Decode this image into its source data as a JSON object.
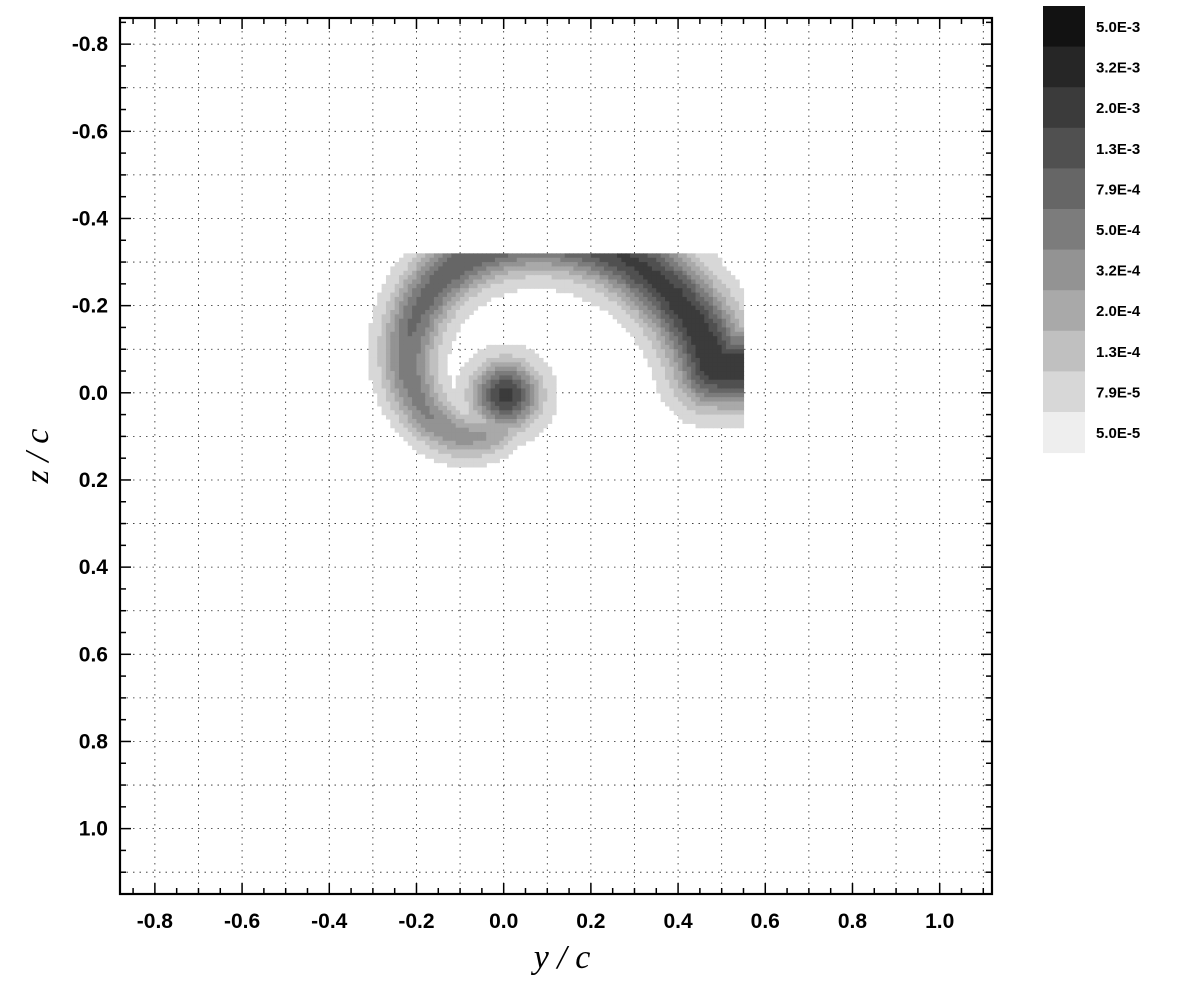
{
  "chart_data": {
    "type": "heatmap",
    "title": "",
    "xlabel": "y / c",
    "ylabel": "z / c",
    "xlim": [
      -0.88,
      1.12
    ],
    "ylim": [
      -0.86,
      1.15
    ],
    "y_axis_inverted": true,
    "grid": true,
    "x_ticks": [
      -0.8,
      -0.6,
      -0.4,
      -0.2,
      0.0,
      0.2,
      0.4,
      0.6,
      0.8,
      1.0
    ],
    "x_tick_labels": [
      "-0.8",
      "-0.6",
      "-0.4",
      "-0.2",
      "0.0",
      "0.2",
      "0.4",
      "0.6",
      "0.8",
      "1.0"
    ],
    "y_ticks": [
      -0.8,
      -0.6,
      -0.4,
      -0.2,
      0.0,
      0.2,
      0.4,
      0.6,
      0.8,
      1.0
    ],
    "y_tick_labels": [
      "-0.8",
      "-0.6",
      "-0.4",
      "-0.2",
      "0.0",
      "0.2",
      "0.4",
      "0.6",
      "0.8",
      "1.0"
    ],
    "colorbar": {
      "placement": "right",
      "scale": "log",
      "levels": [
        0.005,
        0.0032,
        0.002,
        0.0013,
        0.00079,
        0.0005,
        0.00032,
        0.0002,
        0.00013,
        7.9e-05,
        5e-05
      ],
      "level_labels": [
        "5.0E-3",
        "3.2E-3",
        "2.0E-3",
        "1.3E-3",
        "7.9E-4",
        "5.0E-4",
        "3.2E-4",
        "2.0E-4",
        "1.3E-4",
        "7.9E-5",
        "5.0E-5"
      ]
    },
    "field": {
      "description": "spiral sheet structure centred near y/c = 0.0, z/c = 0.0, truncated at y/c = 0.55",
      "core": [
        0.0,
        0.0
      ],
      "cut_y": 0.55,
      "max_level": 0.002
    }
  }
}
